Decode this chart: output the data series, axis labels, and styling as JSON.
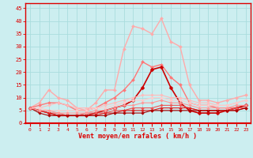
{
  "title": "",
  "xlabel": "Vent moyen/en rafales ( km/h )",
  "ylabel": "",
  "xlim": [
    -0.5,
    23.5
  ],
  "ylim": [
    0,
    47
  ],
  "yticks": [
    0,
    5,
    10,
    15,
    20,
    25,
    30,
    35,
    40,
    45
  ],
  "xticks": [
    0,
    1,
    2,
    3,
    4,
    5,
    6,
    7,
    8,
    9,
    10,
    11,
    12,
    13,
    14,
    15,
    16,
    17,
    18,
    19,
    20,
    21,
    22,
    23
  ],
  "background_color": "#cceef0",
  "grid_color": "#aadddd",
  "axis_color": "#dd0000",
  "lines": [
    {
      "color": "#ffaaaa",
      "lw": 1.0,
      "marker": "D",
      "ms": 2.0,
      "data": [
        6,
        8,
        13,
        10,
        9,
        6,
        5,
        8,
        13,
        13,
        29,
        38,
        37,
        35,
        41,
        32,
        30,
        15,
        9,
        9,
        8,
        9,
        10,
        11
      ]
    },
    {
      "color": "#ff7777",
      "lw": 1.0,
      "marker": "D",
      "ms": 2.0,
      "data": [
        6,
        7,
        8,
        8,
        7,
        5,
        5,
        6,
        8,
        10,
        13,
        17,
        24,
        22,
        23,
        18,
        15,
        8,
        7,
        7,
        6,
        6,
        6,
        7
      ]
    },
    {
      "color": "#cc0000",
      "lw": 1.2,
      "marker": "D",
      "ms": 2.5,
      "data": [
        6,
        5,
        4,
        3,
        3,
        3,
        3,
        4,
        5,
        6,
        7,
        9,
        14,
        21,
        22,
        14,
        8,
        5,
        4,
        4,
        4,
        5,
        6,
        7
      ]
    },
    {
      "color": "#ffbbbb",
      "lw": 0.8,
      "marker": "D",
      "ms": 1.8,
      "data": [
        6,
        6,
        7,
        8,
        7,
        6,
        6,
        6,
        7,
        8,
        9,
        10,
        11,
        11,
        11,
        10,
        10,
        9,
        8,
        8,
        7,
        7,
        8,
        9
      ]
    },
    {
      "color": "#ee5555",
      "lw": 0.8,
      "marker": "D",
      "ms": 1.8,
      "data": [
        6,
        5,
        4,
        4,
        3,
        3,
        4,
        4,
        4,
        5,
        5,
        6,
        6,
        6,
        7,
        7,
        7,
        6,
        5,
        5,
        5,
        5,
        6,
        6
      ]
    },
    {
      "color": "#dd2222",
      "lw": 0.8,
      "marker": "D",
      "ms": 1.8,
      "data": [
        6,
        5,
        4,
        3,
        3,
        3,
        3,
        3,
        4,
        4,
        5,
        5,
        5,
        5,
        6,
        6,
        6,
        6,
        5,
        5,
        5,
        5,
        5,
        6
      ]
    },
    {
      "color": "#ffcccc",
      "lw": 0.8,
      "marker": "D",
      "ms": 1.8,
      "data": [
        6,
        6,
        5,
        5,
        5,
        5,
        5,
        6,
        6,
        7,
        8,
        9,
        9,
        10,
        10,
        9,
        9,
        8,
        7,
        7,
        7,
        7,
        8,
        9
      ]
    },
    {
      "color": "#aa0000",
      "lw": 0.8,
      "marker": "D",
      "ms": 1.8,
      "data": [
        6,
        4,
        3,
        3,
        3,
        3,
        3,
        3,
        3,
        4,
        4,
        4,
        4,
        5,
        5,
        5,
        5,
        5,
        5,
        5,
        5,
        5,
        5,
        6
      ]
    },
    {
      "color": "#ff9999",
      "lw": 0.8,
      "marker": "D",
      "ms": 1.8,
      "data": [
        6,
        5,
        5,
        4,
        4,
        4,
        4,
        5,
        5,
        6,
        7,
        7,
        8,
        8,
        9,
        8,
        8,
        7,
        6,
        6,
        6,
        6,
        7,
        7
      ]
    }
  ]
}
